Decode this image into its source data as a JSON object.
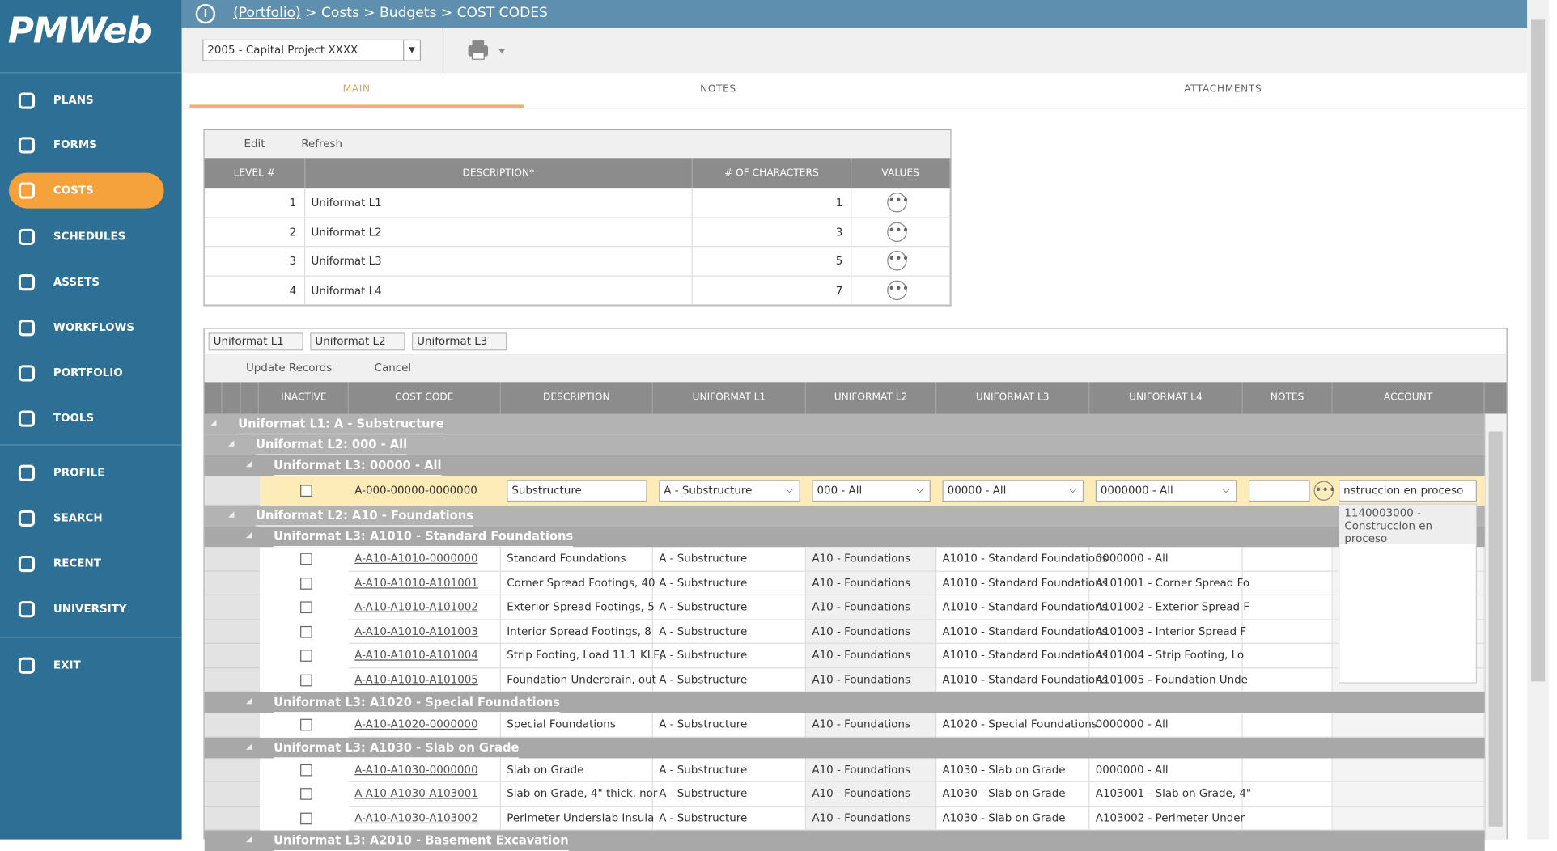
{
  "sidebar": {
    "logo": "PMWeb",
    "items": [
      "PLANS",
      "FORMS",
      "COSTS",
      "SCHEDULES",
      "ASSETS",
      "WORKFLOWS",
      "PORTFOLIO",
      "TOOLS",
      "PROFILE",
      "SEARCH",
      "RECENT",
      "UNIVERSITY",
      "EXIT"
    ],
    "active": 2
  },
  "breadcrumb": {
    "link": "(Portfolio)",
    "path": "> Costs > Budgets > COST CODES"
  },
  "project": "2005 - Capital Project XXXX",
  "tabs": [
    "MAIN",
    "NOTES",
    "ATTACHMENTS"
  ],
  "levels": {
    "toolbar": [
      "Edit",
      "Refresh"
    ],
    "headers": [
      "LEVEL #",
      "DESCRIPTION*",
      "# OF CHARACTERS",
      "VALUES"
    ],
    "rows": [
      [
        1,
        "Uniformat L1",
        1
      ],
      [
        2,
        "Uniformat L2",
        3
      ],
      [
        3,
        "Uniformat L3",
        5
      ],
      [
        4,
        "Uniformat L4",
        7
      ]
    ]
  },
  "grid": {
    "groups": [
      "Uniformat L1",
      "Uniformat L2",
      "Uniformat L3"
    ],
    "toolbar": [
      "Update Records",
      "Cancel"
    ],
    "headers": [
      "INACTIVE",
      "COST CODE",
      "DESCRIPTION",
      "UNIFORMAT L1",
      "UNIFORMAT L2",
      "UNIFORMAT L3",
      "UNIFORMAT L4",
      "NOTES",
      "ACCOUNT"
    ],
    "rows": [
      {
        "level": 1,
        "label": "Uniformat L1: A - Substructure"
      },
      {
        "level": 2,
        "label": "Uniformat L2: 000 - All"
      },
      {
        "level": 3,
        "label": "Uniformat L3: 00000 - All"
      },
      {
        "edit": true,
        "cells": [
          "A-000-00000-0000000",
          "Substructure",
          "A - Substructure",
          "000 - All",
          "00000 - All",
          "0000000 - All"
        ],
        "account": "nstruccion en proceso",
        "option": "1140003000 - Construccion en proceso"
      },
      {
        "level": 2,
        "label": "Uniformat L2: A10 - Foundations"
      },
      {
        "level": 3,
        "label": "Uniformat L3: A1010 - Standard Foundations"
      },
      {
        "cells": [
          "A-A10-A1010-0000000",
          "Standard Foundations",
          "A - Substructure",
          "A10 - Foundations",
          "A1010 - Standard Foundations",
          "0000000 - All"
        ]
      },
      {
        "cells": [
          "A-A10-A1010-A101001",
          "Corner Spread Footings, 40",
          "A - Substructure",
          "A10 - Foundations",
          "A1010 - Standard Foundations",
          "A101001 - Corner Spread Fo"
        ]
      },
      {
        "cells": [
          "A-A10-A1010-A101002",
          "Exterior Spread Footings, 5",
          "A - Substructure",
          "A10 - Foundations",
          "A1010 - Standard Foundations",
          "A101002 - Exterior Spread F"
        ]
      },
      {
        "cells": [
          "A-A10-A1010-A101003",
          "Interior Spread Footings, 8",
          "A - Substructure",
          "A10 - Foundations",
          "A1010 - Standard Foundations",
          "A101003 - Interior Spread F"
        ]
      },
      {
        "cells": [
          "A-A10-A1010-A101004",
          "Strip Footing, Load 11.1 KLF,",
          "A - Substructure",
          "A10 - Foundations",
          "A1010 - Standard Foundations",
          "A101004 - Strip Footing, Lo"
        ]
      },
      {
        "cells": [
          "A-A10-A1010-A101005",
          "Foundation Underdrain, out",
          "A - Substructure",
          "A10 - Foundations",
          "A1010 - Standard Foundations",
          "A101005 - Foundation Unde"
        ]
      },
      {
        "level": 3,
        "label": "Uniformat L3: A1020 - Special Foundations"
      },
      {
        "cells": [
          "A-A10-A1020-0000000",
          "Special Foundations",
          "A - Substructure",
          "A10 - Foundations",
          "A1020 - Special Foundations",
          "0000000 - All"
        ]
      },
      {
        "level": 3,
        "label": "Uniformat L3: A1030 - Slab on Grade"
      },
      {
        "cells": [
          "A-A10-A1030-0000000",
          "Slab on Grade",
          "A - Substructure",
          "A10 - Foundations",
          "A1030 - Slab on Grade",
          "0000000 - All"
        ]
      },
      {
        "cells": [
          "A-A10-A1030-A103001",
          "Slab on Grade, 4\" thick, nor",
          "A - Substructure",
          "A10 - Foundations",
          "A1030 - Slab on Grade",
          "A103001 - Slab on Grade, 4\""
        ]
      },
      {
        "cells": [
          "A-A10-A1030-A103002",
          "Perimeter Underslab Insula",
          "A - Substructure",
          "A10 - Foundations",
          "A1030 - Slab on Grade",
          "A103002 - Perimeter Under"
        ]
      },
      {
        "level": 3,
        "label": "Uniformat L3: A2010 - Basement Excavation"
      }
    ]
  }
}
